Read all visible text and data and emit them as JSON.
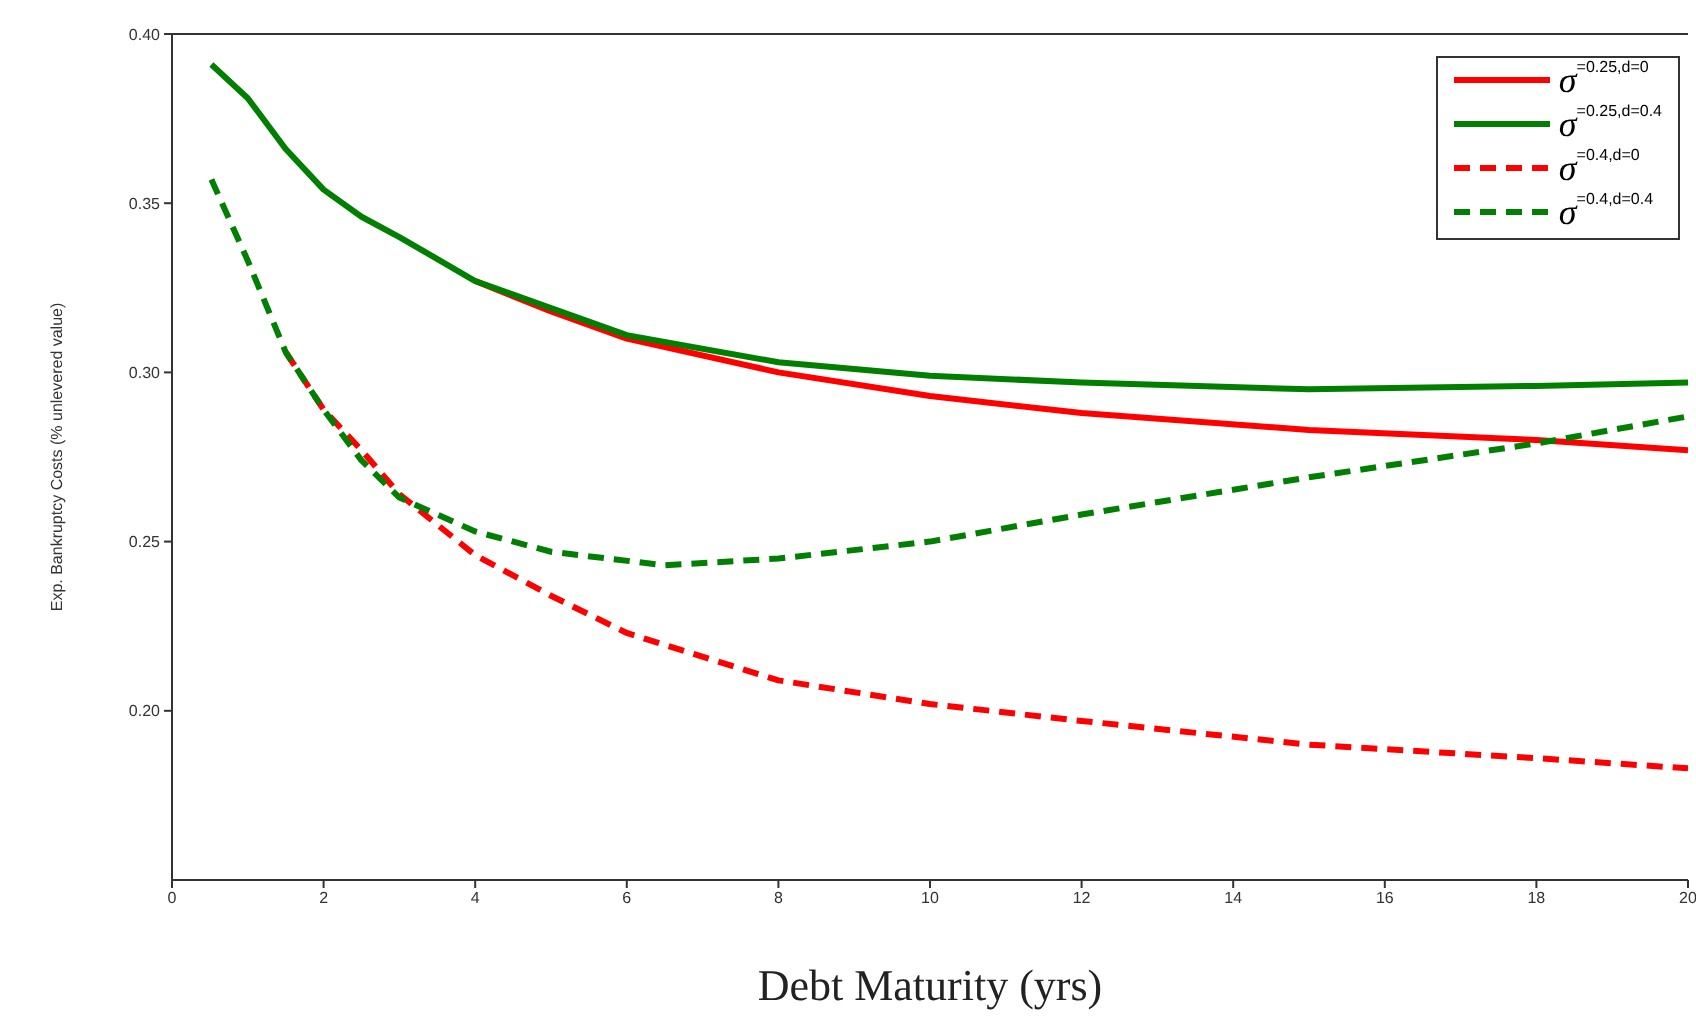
{
  "chart_data": {
    "type": "line",
    "xlabel": "Debt Maturity (yrs)",
    "ylabel": "Exp. Bankruptcy Costs (% unlevered value)",
    "xlim": [
      0,
      20
    ],
    "xticks": [
      0,
      2,
      4,
      6,
      8,
      10,
      12,
      14,
      16,
      18,
      20
    ],
    "ylim": [
      0.15,
      0.4
    ],
    "yticks": [
      {
        "value": 0.2,
        "label": "0.20"
      },
      {
        "value": 0.25,
        "label": "0.25"
      },
      {
        "value": 0.3,
        "label": "0.30"
      },
      {
        "value": 0.35,
        "label": "0.35"
      },
      {
        "value": 0.4,
        "label": "0.40"
      }
    ],
    "grid": false,
    "legend": "top right",
    "marker": "none",
    "series": [
      {
        "name": "σ$^{=0.25,d=0}$",
        "color": "#ff0000",
        "line_style": "solid",
        "x": [
          4,
          5,
          6,
          8,
          10,
          12,
          15,
          18,
          20
        ],
        "values": [
          0.327,
          0.318,
          0.31,
          0.3,
          0.293,
          0.288,
          0.283,
          0.28,
          0.277
        ]
      },
      {
        "name": "σ$^{=0.25,d=0.4}$",
        "color": "#007f00",
        "line_style": "solid",
        "x": [
          0.52,
          1,
          1.5,
          2,
          2.5,
          3,
          4,
          5,
          6,
          8,
          10,
          12,
          15,
          18,
          20
        ],
        "values": [
          0.391,
          0.381,
          0.366,
          0.354,
          0.346,
          0.34,
          0.327,
          0.319,
          0.311,
          0.303,
          0.299,
          0.297,
          0.295,
          0.296,
          0.297
        ]
      },
      {
        "name": "σ$^{=0.4,d=0}$",
        "color": "#ff0000",
        "line_style": "dashed",
        "x": [
          1.5,
          2,
          2.5,
          3,
          4,
          5,
          6,
          8,
          10,
          12,
          15,
          18,
          20
        ],
        "values": [
          0.306,
          0.289,
          0.277,
          0.264,
          0.246,
          0.234,
          0.223,
          0.209,
          0.202,
          0.197,
          0.19,
          0.186,
          0.183
        ]
      },
      {
        "name": "σ$^{=0.4,d=0.4}$",
        "color": "#007f00",
        "line_style": "dashed",
        "x": [
          0.52,
          1,
          1.5,
          2,
          2.5,
          3,
          4,
          5,
          6.5,
          8,
          10,
          12,
          15,
          18,
          20
        ],
        "values": [
          0.357,
          0.333,
          0.306,
          0.289,
          0.274,
          0.263,
          0.253,
          0.247,
          0.243,
          0.245,
          0.25,
          0.258,
          0.269,
          0.279,
          0.287
        ]
      }
    ]
  }
}
